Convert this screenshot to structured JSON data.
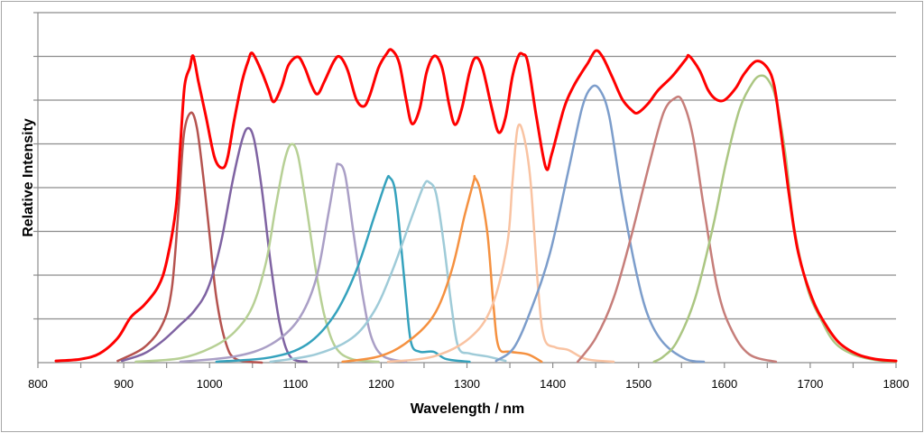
{
  "chart_data": {
    "type": "line",
    "title": "",
    "xlabel": "Wavelength / nm",
    "ylabel": "Relative Intensity",
    "xlim": [
      800,
      1800
    ],
    "ylim": [
      0,
      8
    ],
    "x_ticks": [
      800,
      900,
      1000,
      1100,
      1200,
      1300,
      1400,
      1500,
      1600,
      1700,
      1800
    ],
    "x_minor_step": 50,
    "y_gridlines": 8,
    "y_tick_labels": false,
    "grid": true,
    "legend": "none",
    "series": [
      {
        "color": "#b5534f",
        "x": [
          893,
          924,
          945,
          956,
          964,
          970,
          978,
          985,
          992,
          1000,
          1008,
          1019,
          1031,
          1061
        ],
        "y": [
          0.04,
          0.35,
          0.87,
          1.69,
          3.55,
          5.2,
          5.71,
          5.4,
          4.37,
          2.93,
          1.48,
          0.45,
          0.08,
          0
        ]
      },
      {
        "color": "#7f63a2",
        "x": [
          898,
          924,
          945,
          966,
          982,
          998,
          1013,
          1027,
          1038,
          1045,
          1052,
          1061,
          1071,
          1082,
          1094,
          1113
        ],
        "y": [
          0.04,
          0.21,
          0.49,
          0.87,
          1.18,
          1.69,
          2.72,
          4.16,
          5.09,
          5.36,
          5.09,
          3.96,
          2.31,
          0.87,
          0.14,
          0.02
        ]
      },
      {
        "color": "#b7d095",
        "x": [
          914,
          966,
          1003,
          1029,
          1050,
          1066,
          1077,
          1087,
          1095,
          1103,
          1113,
          1124,
          1134,
          1147,
          1166,
          1197
        ],
        "y": [
          0.02,
          0.1,
          0.35,
          0.7,
          1.28,
          2.31,
          3.55,
          4.58,
          4.99,
          4.74,
          3.55,
          2.1,
          1.07,
          0.35,
          0.08,
          0.02
        ]
      },
      {
        "color": "#aa9fc6",
        "x": [
          966,
          1029,
          1071,
          1103,
          1124,
          1138,
          1147,
          1150,
          1158,
          1168,
          1179,
          1189,
          1203,
          1229
        ],
        "y": [
          0.02,
          0.14,
          0.41,
          0.97,
          1.9,
          3.34,
          4.37,
          4.54,
          4.29,
          2.93,
          1.48,
          0.56,
          0.14,
          0.02
        ]
      },
      {
        "color": "#35a2bd",
        "x": [
          1008,
          1071,
          1113,
          1145,
          1171,
          1192,
          1206,
          1210,
          1216,
          1222,
          1229,
          1235,
          1245,
          1261,
          1276,
          1303
        ],
        "y": [
          0.02,
          0.12,
          0.41,
          1.07,
          2.1,
          3.34,
          4.16,
          4.23,
          3.96,
          2.93,
          1.48,
          0.45,
          0.25,
          0.25,
          0.08,
          0.02
        ]
      },
      {
        "color": "#9fcbd8",
        "x": [
          1071,
          1124,
          1166,
          1192,
          1213,
          1236,
          1250,
          1256,
          1264,
          1273,
          1282,
          1290,
          1303,
          1324,
          1345
        ],
        "y": [
          0.02,
          0.19,
          0.56,
          1.18,
          2.1,
          3.34,
          4.06,
          4.12,
          3.86,
          2.72,
          1.28,
          0.35,
          0.21,
          0.14,
          0.04
        ]
      },
      {
        "color": "#f59140",
        "x": [
          1155,
          1197,
          1229,
          1261,
          1282,
          1297,
          1308,
          1309,
          1315,
          1324,
          1331,
          1337,
          1350,
          1371,
          1387
        ],
        "y": [
          0.02,
          0.14,
          0.45,
          1.07,
          2.1,
          3.34,
          4.16,
          4.23,
          3.96,
          2.93,
          1.28,
          0.35,
          0.25,
          0.19,
          0.02
        ]
      },
      {
        "color": "#f9c3a2",
        "x": [
          1208,
          1261,
          1303,
          1329,
          1347,
          1353,
          1359,
          1366,
          1374,
          1383,
          1390,
          1403,
          1418,
          1439,
          1471
        ],
        "y": [
          0.02,
          0.14,
          0.56,
          1.28,
          2.72,
          4.12,
          5.36,
          5.2,
          4.16,
          1.69,
          0.56,
          0.35,
          0.29,
          0.08,
          0.02
        ]
      },
      {
        "color": "#7c9dcb",
        "x": [
          1334,
          1355,
          1376,
          1397,
          1418,
          1434,
          1445,
          1455,
          1466,
          1481,
          1497,
          1511,
          1529,
          1555,
          1576
        ],
        "y": [
          0.04,
          0.35,
          1.28,
          2.52,
          4.37,
          5.81,
          6.29,
          6.23,
          5.61,
          3.75,
          2.1,
          1.07,
          0.45,
          0.08,
          0.02
        ]
      },
      {
        "color": "#c67e7a",
        "x": [
          1429,
          1450,
          1471,
          1492,
          1513,
          1529,
          1542,
          1551,
          1563,
          1576,
          1592,
          1608,
          1629,
          1660
        ],
        "y": [
          0.02,
          0.56,
          1.48,
          2.93,
          4.58,
          5.71,
          6.04,
          5.98,
          5.2,
          3.55,
          1.69,
          0.76,
          0.19,
          0.02
        ]
      },
      {
        "color": "#abc682",
        "x": [
          1518,
          1529,
          1545,
          1566,
          1587,
          1602,
          1618,
          1634,
          1644,
          1652,
          1660,
          1671,
          1681,
          1697,
          1713,
          1729,
          1750,
          1776,
          1800
        ],
        "y": [
          0.02,
          0.14,
          0.49,
          1.48,
          3.13,
          4.58,
          5.81,
          6.43,
          6.56,
          6.43,
          6.02,
          4.78,
          3.13,
          1.69,
          0.97,
          0.45,
          0.19,
          0.06,
          0.02
        ]
      },
      {
        "color": "#ff0000",
        "x": [
          821,
          850,
          872,
          893,
          908,
          924,
          940,
          950,
          961,
          966,
          971,
          977,
          981,
          987,
          996,
          1006,
          1015,
          1021,
          1029,
          1038,
          1045,
          1050,
          1061,
          1069,
          1075,
          1084,
          1092,
          1103,
          1111,
          1119,
          1126,
          1134,
          1145,
          1152,
          1161,
          1171,
          1180,
          1187,
          1197,
          1206,
          1212,
          1221,
          1229,
          1236,
          1245,
          1253,
          1262,
          1271,
          1279,
          1286,
          1294,
          1303,
          1310,
          1318,
          1329,
          1337,
          1345,
          1353,
          1360,
          1365,
          1371,
          1381,
          1392,
          1399,
          1413,
          1424,
          1434,
          1441,
          1450,
          1458,
          1469,
          1481,
          1492,
          1499,
          1511,
          1523,
          1539,
          1555,
          1559,
          1571,
          1581,
          1590,
          1600,
          1613,
          1623,
          1637,
          1650,
          1658,
          1665,
          1676,
          1686,
          1702,
          1718,
          1734,
          1755,
          1776,
          1800
        ],
        "y": [
          0.04,
          0.08,
          0.21,
          0.56,
          1.03,
          1.32,
          1.73,
          2.31,
          3.55,
          4.99,
          6.33,
          6.74,
          7.01,
          6.43,
          5.61,
          4.68,
          4.45,
          4.68,
          5.57,
          6.43,
          6.89,
          7.07,
          6.64,
          6.23,
          5.96,
          6.31,
          6.8,
          6.99,
          6.74,
          6.33,
          6.14,
          6.43,
          6.89,
          6.99,
          6.68,
          6.02,
          5.86,
          6.12,
          6.74,
          7.05,
          7.15,
          6.85,
          6.02,
          5.46,
          5.81,
          6.64,
          7.01,
          6.74,
          5.92,
          5.44,
          5.81,
          6.64,
          6.97,
          6.74,
          5.81,
          5.26,
          5.61,
          6.54,
          7.01,
          7.05,
          6.85,
          5.61,
          4.45,
          4.78,
          5.81,
          6.31,
          6.64,
          6.85,
          7.13,
          6.99,
          6.54,
          6.02,
          5.77,
          5.71,
          5.92,
          6.23,
          6.54,
          6.93,
          7.01,
          6.68,
          6.23,
          6.02,
          6.0,
          6.27,
          6.6,
          6.89,
          6.74,
          6.33,
          5.4,
          3.75,
          2.52,
          1.48,
          0.87,
          0.45,
          0.19,
          0.08,
          0.04
        ]
      }
    ]
  }
}
